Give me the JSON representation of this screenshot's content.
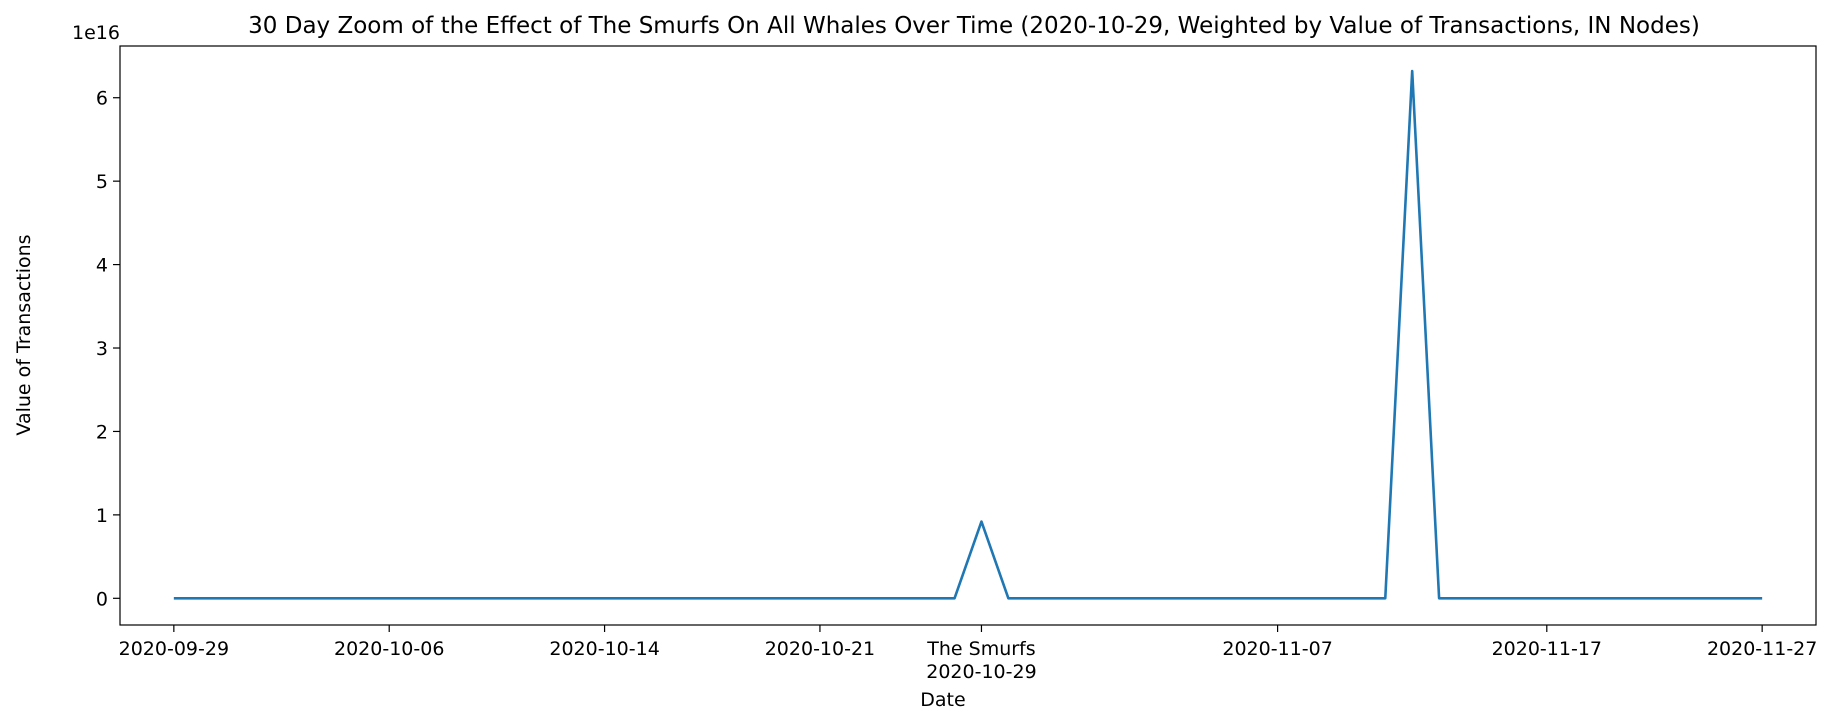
{
  "chart_data": {
    "type": "line",
    "title": "30 Day Zoom of the Effect of The Smurfs On All Whales Over Time (2020-10-29, Weighted by Value of Transactions, IN Nodes)",
    "xlabel": "Date",
    "ylabel": "Value of Transactions",
    "y_offset_label": "1e16",
    "y_multiplier": 1e+16,
    "grid": false,
    "legend": "none",
    "line_color": "#1f77b4",
    "xlim": [
      "2020-09-27",
      "2020-11-29"
    ],
    "ylim": [
      -0.32,
      6.62
    ],
    "y_ticks": [
      0,
      1,
      2,
      3,
      4,
      5,
      6
    ],
    "y_tick_labels": [
      "0",
      "1",
      "2",
      "3",
      "4",
      "5",
      "6"
    ],
    "x_ticks": [
      {
        "date": "2020-09-29",
        "label": "2020-09-29"
      },
      {
        "date": "2020-10-07",
        "label": "2020-10-06"
      },
      {
        "date": "2020-10-15",
        "label": "2020-10-14"
      },
      {
        "date": "2020-10-23",
        "label": "2020-10-21"
      },
      {
        "date": "2020-10-29",
        "label": "The Smurfs\n2020-10-29"
      },
      {
        "date": "2020-11-09",
        "label": "2020-11-07"
      },
      {
        "date": "2020-11-19",
        "label": "2020-11-17"
      },
      {
        "date": "2020-11-27",
        "label": "2020-11-27"
      }
    ],
    "series": [
      {
        "x": [
          "2020-09-29",
          "2020-10-28",
          "2020-10-29",
          "2020-10-30",
          "2020-11-13",
          "2020-11-14",
          "2020-11-15",
          "2020-11-27"
        ],
        "y": [
          0,
          0,
          0.92,
          0,
          0,
          6.32,
          0,
          0
        ]
      }
    ]
  }
}
